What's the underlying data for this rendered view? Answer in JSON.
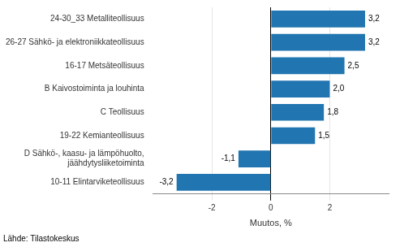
{
  "chart_data": {
    "type": "bar",
    "orientation": "horizontal",
    "categories": [
      "10-11 Elintarviketeollisuus",
      "D Sähkö-, kaasu- ja lämpöhuolto,\njäähdytysliiketoiminta",
      "19-22 Kemianteollisuus",
      "C Teollisuus",
      "B Kaivostoiminta ja louhinta",
      "16-17 Metsäteollisuus",
      "26-27 Sähkö- ja elektroniikkateollisuus",
      "24-30_33 Metalliteollisuus"
    ],
    "values": [
      -3.2,
      -1.1,
      1.5,
      1.8,
      2.0,
      2.5,
      3.2,
      3.2
    ],
    "value_labels": [
      "-3,2",
      "-1,1",
      "1,5",
      "1,8",
      "2,0",
      "2,5",
      "3,2",
      "3,2"
    ],
    "data_labels": true,
    "color": "#2175b0",
    "xlabel": "Muutos, %",
    "xlim": [
      -4.0,
      4.0
    ],
    "xticks": [
      -2,
      0,
      2
    ],
    "grid": true,
    "footer": "Lähde: Tilastokeskus"
  }
}
